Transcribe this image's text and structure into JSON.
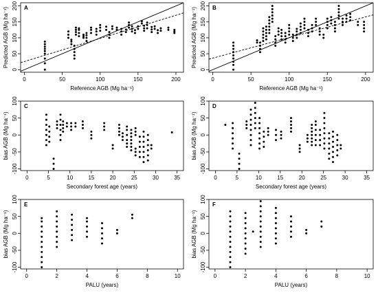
{
  "chart_data": [
    {
      "panel": "A",
      "type": "scatter",
      "xlabel": "Reference AGB (Mg ha⁻¹)",
      "ylabel": "Predicted AGB (Mg ha⁻¹)",
      "xlim": [
        -5,
        210
      ],
      "ylim": [
        -8,
        210
      ],
      "xticks": [
        0,
        50,
        100,
        150,
        200
      ],
      "yticks": [
        0,
        50,
        100,
        150,
        200
      ],
      "lines": [
        {
          "style": "solid",
          "x": [
            -5,
            210
          ],
          "y": [
            -5,
            210
          ]
        },
        {
          "style": "dashed",
          "x": [
            -5,
            210
          ],
          "y": [
            22,
            178
          ]
        }
      ],
      "groups": [
        [
          27,
          [
            0,
            20,
            35,
            50,
            58,
            65,
            72,
            80,
            88
          ]
        ],
        [
          58,
          [
            100,
            110,
            120
          ]
        ],
        [
          62,
          [
            80,
            88,
            94
          ]
        ],
        [
          66,
          [
            35,
            45,
            55,
            65,
            75
          ]
        ],
        [
          68,
          [
            110,
            118,
            125,
            132
          ]
        ],
        [
          72,
          [
            105,
            115,
            125,
            130
          ]
        ],
        [
          78,
          [
            100,
            105,
            110
          ]
        ],
        [
          82,
          [
            90,
            100,
            108,
            115
          ]
        ],
        [
          88,
          [
            115,
            125,
            132
          ]
        ],
        [
          95,
          [
            110,
            120,
            128
          ]
        ],
        [
          100,
          [
            122,
            132,
            140
          ]
        ],
        [
          108,
          [
            125,
            135
          ]
        ],
        [
          112,
          [
            100,
            110,
            118
          ]
        ],
        [
          116,
          [
            128,
            136
          ]
        ],
        [
          122,
          [
            125,
            132
          ]
        ],
        [
          128,
          [
            110,
            120,
            128
          ]
        ],
        [
          134,
          [
            118,
            126
          ]
        ],
        [
          138,
          [
            132,
            140,
            148
          ]
        ],
        [
          142,
          [
            120,
            128,
            136
          ]
        ],
        [
          146,
          [
            115,
            124
          ]
        ],
        [
          150,
          [
            128,
            136
          ]
        ],
        [
          155,
          [
            145,
            152
          ]
        ],
        [
          158,
          [
            122,
            130,
            138
          ]
        ],
        [
          162,
          [
            130,
            140,
            148
          ]
        ],
        [
          168,
          [
            118,
            126,
            134
          ]
        ],
        [
          172,
          [
            128,
            136
          ]
        ],
        [
          176,
          [
            115,
            124
          ]
        ],
        [
          180,
          [
            122,
            130
          ]
        ],
        [
          190,
          [
            125,
            132
          ]
        ],
        [
          198,
          [
            115,
            120,
            125
          ]
        ]
      ]
    },
    {
      "panel": "B",
      "type": "scatter",
      "xlabel": "Reference AGB (Mg ha⁻¹)",
      "ylabel": "Predicted AGB (Mg ha⁻¹)",
      "xlim": [
        -5,
        210
      ],
      "ylim": [
        -8,
        210
      ],
      "xticks": [
        0,
        50,
        100,
        150,
        200
      ],
      "yticks": [
        0,
        50,
        100,
        150,
        200
      ],
      "lines": [
        {
          "style": "solid",
          "x": [
            -5,
            210
          ],
          "y": [
            -5,
            210
          ]
        },
        {
          "style": "dashed",
          "x": [
            -5,
            210
          ],
          "y": [
            33,
            172
          ]
        }
      ],
      "groups": [
        [
          27,
          [
            0,
            15,
            25,
            35,
            45,
            55,
            65,
            75,
            85
          ]
        ],
        [
          58,
          [
            85,
            92
          ]
        ],
        [
          62,
          [
            55,
            65,
            75,
            85
          ]
        ],
        [
          66,
          [
            90,
            100,
            110,
            120,
            130
          ]
        ],
        [
          70,
          [
            95,
            105,
            115,
            125,
            135
          ]
        ],
        [
          74,
          [
            115,
            125,
            135,
            145,
            155,
            165
          ]
        ],
        [
          78,
          [
            150,
            160,
            170,
            180,
            190,
            200
          ]
        ],
        [
          82,
          [
            75,
            85,
            95,
            105
          ]
        ],
        [
          86,
          [
            110,
            120,
            130
          ]
        ],
        [
          90,
          [
            95,
            105,
            115,
            125
          ]
        ],
        [
          95,
          [
            85,
            95,
            105,
            115
          ]
        ],
        [
          100,
          [
            110,
            120,
            130,
            140
          ]
        ],
        [
          105,
          [
            90,
            100,
            110
          ]
        ],
        [
          110,
          [
            100,
            110,
            120,
            128
          ]
        ],
        [
          115,
          [
            115,
            125,
            135,
            145
          ]
        ],
        [
          120,
          [
            130,
            140,
            150,
            160
          ]
        ],
        [
          125,
          [
            105,
            115,
            125
          ]
        ],
        [
          130,
          [
            120,
            130,
            140
          ]
        ],
        [
          135,
          [
            140,
            150,
            160
          ]
        ],
        [
          140,
          [
            110,
            120,
            130
          ]
        ],
        [
          145,
          [
            100,
            110
          ]
        ],
        [
          150,
          [
            130,
            140,
            150,
            160
          ]
        ],
        [
          155,
          [
            145,
            155,
            165
          ]
        ],
        [
          160,
          [
            120,
            130,
            140,
            150
          ]
        ],
        [
          165,
          [
            160,
            170,
            180,
            190,
            200
          ]
        ],
        [
          170,
          [
            140,
            150,
            160
          ]
        ],
        [
          175,
          [
            150,
            160,
            170
          ]
        ],
        [
          180,
          [
            155,
            165,
            175
          ]
        ],
        [
          190,
          [
            140,
            150
          ]
        ],
        [
          198,
          [
            120,
            130,
            140,
            150
          ]
        ]
      ]
    },
    {
      "panel": "C",
      "type": "scatter",
      "xlabel": "Secondary forest age (years)",
      "ylabel": "bias AGB (Mg ha⁻¹)",
      "xlim": [
        -1.5,
        36.5
      ],
      "ylim": [
        -105,
        100
      ],
      "xticks": [
        0,
        5,
        10,
        15,
        20,
        25,
        30,
        35
      ],
      "yticks": [
        -100,
        -50,
        0,
        50,
        100
      ],
      "groups": [
        [
          4.5,
          [
            -30,
            -15,
            0,
            15,
            30,
            45,
            60
          ]
        ],
        [
          5.2,
          [
            -20,
            -5,
            10,
            25
          ]
        ],
        [
          6.2,
          [
            -100,
            -85,
            -70
          ]
        ],
        [
          7,
          [
            20,
            30,
            40
          ]
        ],
        [
          7.8,
          [
            -15,
            0,
            15,
            30,
            45,
            60
          ]
        ],
        [
          8.4,
          [
            10,
            20,
            30,
            40
          ]
        ],
        [
          9.3,
          [
            25,
            35
          ]
        ],
        [
          10.3,
          [
            15,
            25,
            35
          ]
        ],
        [
          11.3,
          [
            25,
            35
          ]
        ],
        [
          13,
          [
            20,
            30,
            40
          ]
        ],
        [
          15,
          [
            -10,
            0,
            10
          ]
        ],
        [
          18,
          [
            15,
            25,
            35
          ]
        ],
        [
          20,
          [
            -40,
            -30
          ]
        ],
        [
          21.5,
          [
            0,
            10,
            20,
            30
          ]
        ],
        [
          22.3,
          [
            -15,
            -5,
            5
          ]
        ],
        [
          23.3,
          [
            -35,
            -25,
            -15,
            0,
            15,
            25
          ]
        ],
        [
          24.3,
          [
            -45,
            -35,
            -25,
            -15,
            -5,
            5,
            15
          ]
        ],
        [
          25.3,
          [
            -60,
            -50,
            -40,
            0,
            10,
            20
          ]
        ],
        [
          26.3,
          [
            -65,
            -50,
            -35,
            -20,
            -5
          ]
        ],
        [
          27.2,
          [
            -80,
            -65,
            -50,
            -35,
            -20,
            -5,
            10
          ]
        ],
        [
          28.2,
          [
            -75,
            -60,
            -45,
            -30,
            -15,
            0
          ]
        ],
        [
          29,
          [
            -40,
            -30
          ]
        ],
        [
          33.8,
          [
            8
          ]
        ]
      ]
    },
    {
      "panel": "D",
      "type": "scatter",
      "xlabel": "Secondary forest age (years)",
      "ylabel": "bias AGB (Mg ha⁻¹)",
      "xlim": [
        -1.5,
        36.5
      ],
      "ylim": [
        -105,
        100
      ],
      "xticks": [
        0,
        5,
        10,
        15,
        20,
        25,
        30,
        35
      ],
      "yticks": [
        -100,
        -50,
        0,
        50,
        100
      ],
      "groups": [
        [
          2.3,
          [
            30
          ]
        ],
        [
          4,
          [
            -40,
            -25,
            -10,
            5,
            20,
            35
          ]
        ],
        [
          5.5,
          [
            -100,
            -85,
            -70,
            -55
          ]
        ],
        [
          7.2,
          [
            20,
            30,
            40
          ]
        ],
        [
          8.2,
          [
            -30,
            -15,
            0,
            15,
            30,
            45,
            60,
            75
          ]
        ],
        [
          9.2,
          [
            20,
            35,
            50,
            65,
            80,
            95
          ]
        ],
        [
          10.2,
          [
            -40,
            -25,
            -10,
            5,
            20,
            35,
            50
          ]
        ],
        [
          11.2,
          [
            -35,
            -20,
            -5,
            10
          ]
        ],
        [
          12.2,
          [
            0,
            10,
            20
          ]
        ],
        [
          14,
          [
            -15,
            0,
            15
          ]
        ],
        [
          15.2,
          [
            -10,
            0,
            10
          ]
        ],
        [
          17.5,
          [
            10,
            20,
            30,
            40,
            50
          ]
        ],
        [
          19.5,
          [
            -50,
            -40,
            -30
          ]
        ],
        [
          21.3,
          [
            -20,
            -10,
            0
          ]
        ],
        [
          22.3,
          [
            -30,
            -20,
            -10,
            0,
            10,
            20,
            30
          ]
        ],
        [
          23.2,
          [
            -30,
            -15,
            0,
            15,
            30,
            40
          ]
        ],
        [
          24.2,
          [
            -30,
            -15,
            0,
            15
          ]
        ],
        [
          25.2,
          [
            -40,
            -25,
            -10,
            5,
            20,
            35,
            50,
            65
          ]
        ],
        [
          26.3,
          [
            -70,
            -55,
            -40,
            -25,
            -10,
            5
          ]
        ],
        [
          27.2,
          [
            -80,
            -65,
            -50,
            -35,
            -20,
            -5,
            10
          ]
        ],
        [
          28.2,
          [
            -60,
            -45,
            -30,
            -15,
            0
          ]
        ],
        [
          29,
          [
            -40,
            -30
          ]
        ]
      ]
    },
    {
      "panel": "E",
      "type": "scatter",
      "xlabel": "PALU (years)",
      "ylabel": "bias AGB (Mg ha⁻¹)",
      "xlim": [
        -0.4,
        10.4
      ],
      "ylim": [
        -105,
        100
      ],
      "xticks": [
        0,
        2,
        4,
        6,
        8,
        10
      ],
      "yticks": [
        -100,
        -50,
        0,
        50,
        100
      ],
      "groups": [
        [
          1,
          [
            -100,
            -85,
            -70,
            -55,
            -40,
            -25,
            -10,
            5,
            20,
            35,
            45
          ]
        ],
        [
          2,
          [
            -40,
            -25,
            -10,
            5,
            20,
            35,
            50,
            65
          ]
        ],
        [
          3,
          [
            -20,
            -5,
            10,
            25,
            40,
            55
          ]
        ],
        [
          4,
          [
            -10,
            5,
            20,
            35,
            45
          ]
        ],
        [
          5,
          [
            -30,
            -15,
            0,
            15,
            30
          ]
        ],
        [
          6,
          [
            0,
            10
          ]
        ],
        [
          7,
          [
            45,
            55
          ]
        ]
      ]
    },
    {
      "panel": "F",
      "type": "scatter",
      "xlabel": "PALU (years)",
      "ylabel": "bias AGB (Mg ha⁻¹)",
      "xlim": [
        -0.4,
        10.4
      ],
      "ylim": [
        -105,
        100
      ],
      "xticks": [
        0,
        2,
        4,
        6,
        8,
        10
      ],
      "yticks": [
        -100,
        -50,
        0,
        50,
        100
      ],
      "groups": [
        [
          1,
          [
            -100,
            -85,
            -70,
            -55,
            -40,
            -25,
            -10,
            5,
            20,
            35,
            50,
            65
          ]
        ],
        [
          2,
          [
            -60,
            -45,
            -30,
            -15,
            0,
            15,
            30,
            45,
            60
          ]
        ],
        [
          2.5,
          [
            5
          ]
        ],
        [
          3,
          [
            -40,
            -25,
            -10,
            5,
            20,
            35,
            50,
            65,
            80,
            95
          ]
        ],
        [
          4,
          [
            -30,
            -15,
            0,
            15,
            30,
            45,
            60,
            75
          ]
        ],
        [
          5,
          [
            -10,
            5,
            20,
            35,
            50
          ]
        ],
        [
          6,
          [
            0,
            10
          ]
        ],
        [
          7,
          [
            20,
            35
          ]
        ]
      ]
    }
  ]
}
